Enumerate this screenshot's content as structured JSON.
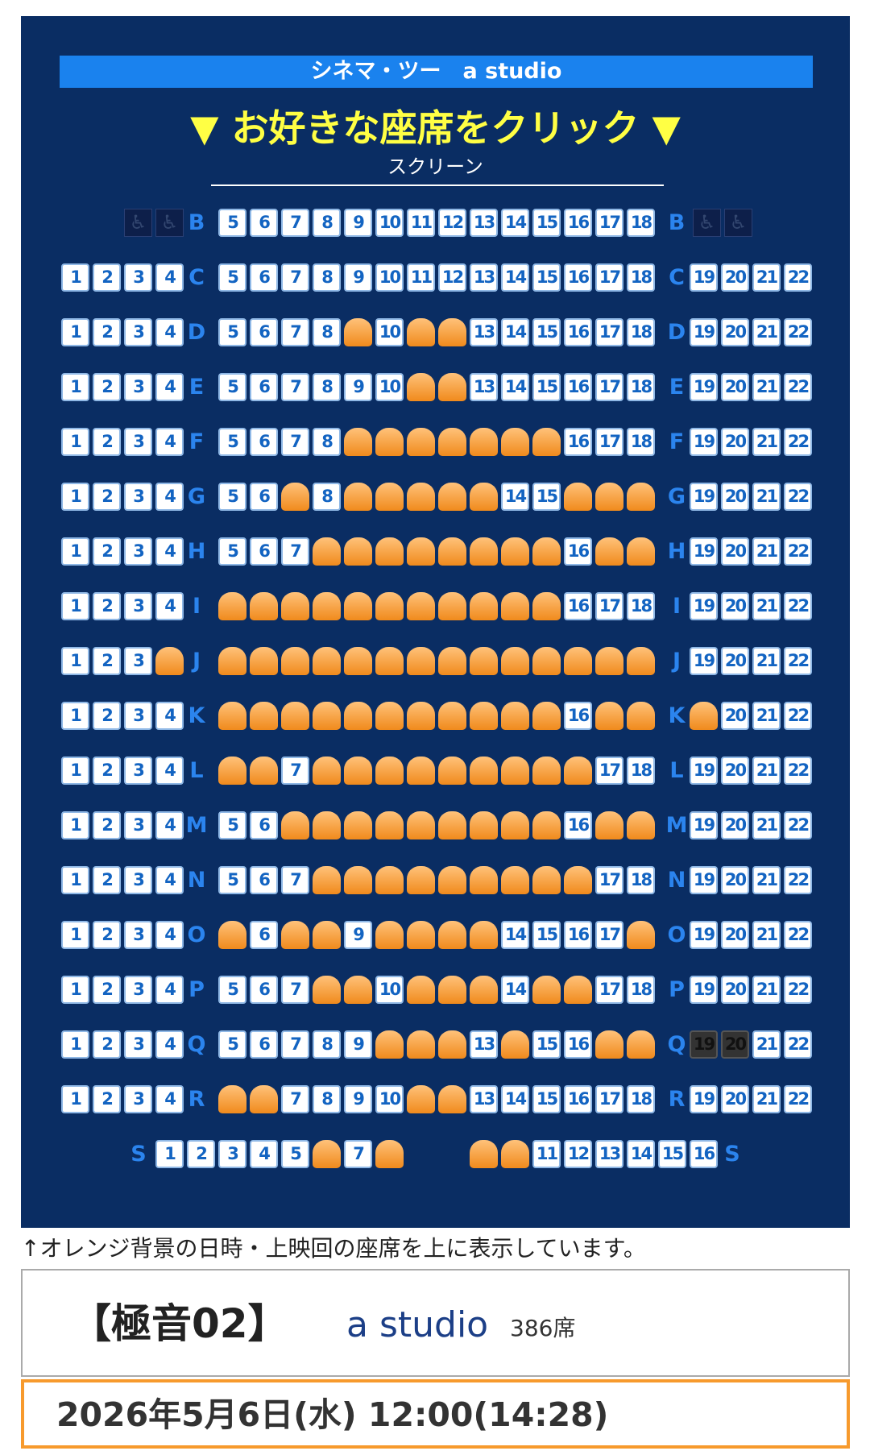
{
  "theater": {
    "name": "シネマ・ツー　a studio"
  },
  "instruction": "▼ お好きな座席をクリック ▼",
  "screen_label": "スクリーン",
  "wheelchair_icon": "wheelchair-icon",
  "colors": {
    "map_bg": "#0a2d63",
    "accent": "#1a82ee",
    "taken": "#f59a2c",
    "highlight": "#f79a2d"
  },
  "seat_map": {
    "rows": [
      {
        "row": "B",
        "left": [],
        "center": [
          5,
          6,
          7,
          8,
          9,
          10,
          11,
          12,
          13,
          14,
          15,
          16,
          17,
          18
        ],
        "right": [],
        "taken": [],
        "blocked": [],
        "wheelchair": true
      },
      {
        "row": "C",
        "left": [
          1,
          2,
          3,
          4
        ],
        "center": [
          5,
          6,
          7,
          8,
          9,
          10,
          11,
          12,
          13,
          14,
          15,
          16,
          17,
          18
        ],
        "right": [
          19,
          20,
          21,
          22
        ],
        "taken": [],
        "blocked": []
      },
      {
        "row": "D",
        "left": [
          1,
          2,
          3,
          4
        ],
        "center": [
          5,
          6,
          7,
          8,
          9,
          10,
          11,
          12,
          13,
          14,
          15,
          16,
          17,
          18
        ],
        "right": [
          19,
          20,
          21,
          22
        ],
        "taken": [
          9,
          11,
          12
        ],
        "blocked": []
      },
      {
        "row": "E",
        "left": [
          1,
          2,
          3,
          4
        ],
        "center": [
          5,
          6,
          7,
          8,
          9,
          10,
          11,
          12,
          13,
          14,
          15,
          16,
          17,
          18
        ],
        "right": [
          19,
          20,
          21,
          22
        ],
        "taken": [
          11,
          12
        ],
        "blocked": []
      },
      {
        "row": "F",
        "left": [
          1,
          2,
          3,
          4
        ],
        "center": [
          5,
          6,
          7,
          8,
          9,
          10,
          11,
          12,
          13,
          14,
          15,
          16,
          17,
          18
        ],
        "right": [
          19,
          20,
          21,
          22
        ],
        "taken": [
          9,
          10,
          11,
          12,
          13,
          14,
          15
        ],
        "blocked": []
      },
      {
        "row": "G",
        "left": [
          1,
          2,
          3,
          4
        ],
        "center": [
          5,
          6,
          7,
          8,
          9,
          10,
          11,
          12,
          13,
          14,
          15,
          16,
          17,
          18
        ],
        "right": [
          19,
          20,
          21,
          22
        ],
        "taken": [
          7,
          9,
          10,
          11,
          12,
          13,
          16,
          17,
          18
        ],
        "blocked": []
      },
      {
        "row": "H",
        "left": [
          1,
          2,
          3,
          4
        ],
        "center": [
          5,
          6,
          7,
          8,
          9,
          10,
          11,
          12,
          13,
          14,
          15,
          16,
          17,
          18
        ],
        "right": [
          19,
          20,
          21,
          22
        ],
        "taken": [
          8,
          9,
          10,
          11,
          12,
          13,
          14,
          15,
          17,
          18
        ],
        "blocked": []
      },
      {
        "row": "I",
        "left": [
          1,
          2,
          3,
          4
        ],
        "center": [
          5,
          6,
          7,
          8,
          9,
          10,
          11,
          12,
          13,
          14,
          15,
          16,
          17,
          18
        ],
        "right": [
          19,
          20,
          21,
          22
        ],
        "taken": [
          5,
          6,
          7,
          8,
          9,
          10,
          11,
          12,
          13,
          14,
          15
        ],
        "blocked": []
      },
      {
        "row": "J",
        "left": [
          1,
          2,
          3,
          4
        ],
        "center": [
          5,
          6,
          7,
          8,
          9,
          10,
          11,
          12,
          13,
          14,
          15,
          16,
          17,
          18
        ],
        "right": [
          19,
          20,
          21,
          22
        ],
        "taken": [
          4,
          5,
          6,
          7,
          8,
          9,
          10,
          11,
          12,
          13,
          14,
          15,
          16,
          17,
          18
        ],
        "blocked": []
      },
      {
        "row": "K",
        "left": [
          1,
          2,
          3,
          4
        ],
        "center": [
          5,
          6,
          7,
          8,
          9,
          10,
          11,
          12,
          13,
          14,
          15,
          16,
          17,
          18
        ],
        "right": [
          19,
          20,
          21,
          22
        ],
        "taken": [
          5,
          6,
          7,
          8,
          9,
          10,
          11,
          12,
          13,
          14,
          15,
          17,
          18,
          19
        ],
        "blocked": []
      },
      {
        "row": "L",
        "left": [
          1,
          2,
          3,
          4
        ],
        "center": [
          5,
          6,
          7,
          8,
          9,
          10,
          11,
          12,
          13,
          14,
          15,
          16,
          17,
          18
        ],
        "right": [
          19,
          20,
          21,
          22
        ],
        "taken": [
          5,
          6,
          8,
          9,
          10,
          11,
          12,
          13,
          14,
          15,
          16
        ],
        "blocked": []
      },
      {
        "row": "M",
        "left": [
          1,
          2,
          3,
          4
        ],
        "center": [
          5,
          6,
          7,
          8,
          9,
          10,
          11,
          12,
          13,
          14,
          15,
          16,
          17,
          18
        ],
        "right": [
          19,
          20,
          21,
          22
        ],
        "taken": [
          7,
          8,
          9,
          10,
          11,
          12,
          13,
          14,
          15,
          17,
          18
        ],
        "blocked": []
      },
      {
        "row": "N",
        "left": [
          1,
          2,
          3,
          4
        ],
        "center": [
          5,
          6,
          7,
          8,
          9,
          10,
          11,
          12,
          13,
          14,
          15,
          16,
          17,
          18
        ],
        "right": [
          19,
          20,
          21,
          22
        ],
        "taken": [
          8,
          9,
          10,
          11,
          12,
          13,
          14,
          15,
          16
        ],
        "blocked": []
      },
      {
        "row": "O",
        "left": [
          1,
          2,
          3,
          4
        ],
        "center": [
          5,
          6,
          7,
          8,
          9,
          10,
          11,
          12,
          13,
          14,
          15,
          16,
          17,
          18
        ],
        "right": [
          19,
          20,
          21,
          22
        ],
        "taken": [
          5,
          7,
          8,
          10,
          11,
          12,
          13,
          18
        ],
        "blocked": []
      },
      {
        "row": "P",
        "left": [
          1,
          2,
          3,
          4
        ],
        "center": [
          5,
          6,
          7,
          8,
          9,
          10,
          11,
          12,
          13,
          14,
          15,
          16,
          17,
          18
        ],
        "right": [
          19,
          20,
          21,
          22
        ],
        "taken": [
          8,
          9,
          11,
          12,
          13,
          15,
          16
        ],
        "blocked": []
      },
      {
        "row": "Q",
        "left": [
          1,
          2,
          3,
          4
        ],
        "center": [
          5,
          6,
          7,
          8,
          9,
          10,
          11,
          12,
          13,
          14,
          15,
          16,
          17,
          18
        ],
        "right": [
          19,
          20,
          21,
          22
        ],
        "taken": [
          10,
          11,
          12,
          14,
          17,
          18
        ],
        "blocked": [
          19,
          20
        ]
      },
      {
        "row": "R",
        "left": [
          1,
          2,
          3,
          4
        ],
        "center": [
          5,
          6,
          7,
          8,
          9,
          10,
          11,
          12,
          13,
          14,
          15,
          16,
          17,
          18
        ],
        "right": [
          19,
          20,
          21,
          22
        ],
        "taken": [
          5,
          6,
          11,
          12
        ],
        "blocked": []
      }
    ],
    "row_s": {
      "row": "S",
      "left": [
        1,
        2,
        3,
        4,
        5,
        6,
        7,
        8
      ],
      "right": [
        9,
        10,
        11,
        12,
        13,
        14,
        15,
        16
      ],
      "taken": [
        6,
        8,
        9,
        10
      ],
      "blocked": []
    }
  },
  "note": "↑オレンジ背景の日時・上映回の座席を上に表示しています。",
  "movie": {
    "title": "【極音02】",
    "studio": "a studio",
    "seats": "386席"
  },
  "showtime": "2026年5月6日(水) 12:00(14:28)"
}
